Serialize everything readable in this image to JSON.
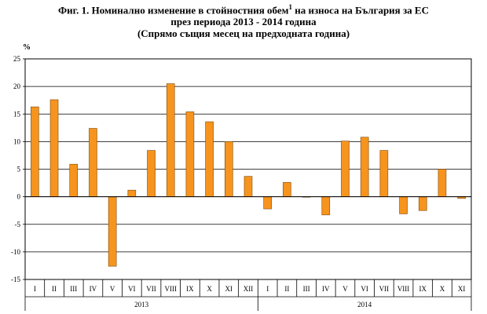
{
  "title": {
    "part1": "Фиг. 1. Номинално изменение в стойностния обем",
    "sup": "1",
    "part2": " на износа на България за ЕС",
    "line2": "през периода 2013 - 2014 година",
    "line3": "(Спрямо същия месец на предходната година)"
  },
  "chart_data": {
    "type": "bar",
    "ylabel": "%",
    "ylim": [
      -15,
      25
    ],
    "yticks": [
      -15,
      -10,
      -5,
      0,
      5,
      10,
      15,
      20,
      25
    ],
    "grid": true,
    "bar_color": "#F7941D",
    "bar_edge_color": "#7A4A10",
    "categories": [
      "I",
      "II",
      "III",
      "IV",
      "V",
      "VI",
      "VII",
      "VIII",
      "IX",
      "X",
      "XI",
      "XII",
      "I",
      "II",
      "III",
      "IV",
      "V",
      "VI",
      "VII",
      "VIII",
      "IX",
      "X",
      "XI"
    ],
    "groups": [
      {
        "label": "2013",
        "start": 0,
        "end": 11
      },
      {
        "label": "2014",
        "start": 12,
        "end": 22
      }
    ],
    "values": [
      16.3,
      17.6,
      5.9,
      12.4,
      -12.6,
      1.2,
      8.4,
      20.5,
      15.4,
      13.6,
      10.0,
      3.7,
      -2.2,
      2.6,
      0.0,
      -3.3,
      10.1,
      10.8,
      8.4,
      -3.1,
      -2.5,
      5.0,
      -0.3
    ]
  }
}
